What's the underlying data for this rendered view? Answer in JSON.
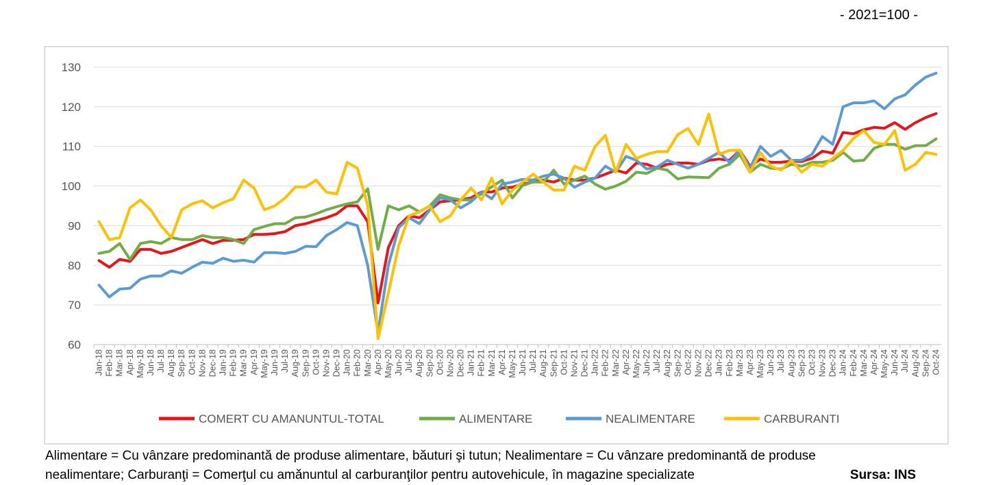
{
  "chart_data": {
    "type": "line",
    "subtitle": "- 2021=100 -",
    "footnote": [
      "Alimentare = Cu vânzare predominantă de produse alimentare, băuturi şi tutun; Nealimentare = Cu vânzare predominantă de produse",
      "nealimentare; Carburanţi = Comerţul cu amănuntul al carburanţilor pentru autovehicule, în magazine specializate"
    ],
    "source": "Sursa: INS",
    "categories": [
      "Jan-18",
      "Feb-18",
      "Mar-18",
      "Apr-18",
      "May-18",
      "Jun-18",
      "Jul-18",
      "Aug-18",
      "Sep-18",
      "Oct-18",
      "Nov-18",
      "Dec-18",
      "Jan-19",
      "Feb-19",
      "Mar-19",
      "Apr-19",
      "May-19",
      "Jun-19",
      "Jul-19",
      "Aug-19",
      "Sep-19",
      "Oct-19",
      "Nov-19",
      "Dec-19",
      "Jan-20",
      "Feb-20",
      "Mar-20",
      "Apr-20",
      "May-20",
      "Jun-20",
      "Jul-20",
      "Aug-20",
      "Sep-20",
      "Oct-20",
      "Nov-20",
      "Dec-20",
      "Jan-21",
      "Feb-21",
      "Mar-21",
      "Apr-21",
      "May-21",
      "Jun-21",
      "Jul-21",
      "Aug-21",
      "Sep-21",
      "Oct-21",
      "Nov-21",
      "Dec-21",
      "Jan-22",
      "Feb-22",
      "Mar-22",
      "Apr-22",
      "May-22",
      "Jun-22",
      "Jul-22",
      "Aug-22",
      "Sep-22",
      "Oct-22",
      "Nov-22",
      "Dec-22",
      "Jan-23",
      "Feb-23",
      "Mar-23",
      "Apr-23",
      "May-23",
      "Jun-23",
      "Jul-23",
      "Aug-23",
      "Sep-23",
      "Oct-23",
      "Nov-23",
      "Dec-23",
      "Jan-24",
      "Feb-24",
      "Mar-24",
      "Apr-24",
      "May-24",
      "Jun-24",
      "Jul-24",
      "Aug-24",
      "Sep-24",
      "Oct-24"
    ],
    "series": [
      {
        "name": "COMERT CU AMANUNTUL-TOTAL",
        "color": "#e8141b",
        "values": [
          81.2,
          79.5,
          81.5,
          81,
          84,
          84,
          83,
          83.5,
          84.5,
          85.5,
          86.5,
          85.5,
          86.3,
          86.3,
          86.5,
          87.8,
          87.8,
          88,
          88.5,
          90,
          90.5,
          91.3,
          92,
          93,
          95,
          95,
          91,
          70.5,
          84.5,
          90,
          92.5,
          92,
          94,
          96,
          96.3,
          96.5,
          97,
          98.5,
          98.5,
          99.5,
          99.7,
          100.5,
          101,
          101.5,
          101,
          102,
          101.5,
          101.5,
          102,
          103,
          104,
          103.3,
          105.8,
          105.5,
          104.5,
          105.5,
          105.8,
          105.8,
          105.5,
          106.5,
          106.8,
          106.5,
          109,
          105,
          106.8,
          106,
          106,
          106.3,
          106.2,
          107,
          108.8,
          108.3,
          113.5,
          113.2,
          114.2,
          114.8,
          114.6,
          116,
          114.3,
          116,
          117.3,
          118.3
        ]
      },
      {
        "name": "ALIMENTARE",
        "color": "#70ad47",
        "values": [
          83,
          83.5,
          85.5,
          81.5,
          85.5,
          86,
          85.5,
          87,
          86.5,
          86.5,
          87.5,
          87,
          87,
          86.5,
          85.5,
          89,
          89.8,
          90.5,
          90.5,
          92,
          92.2,
          93,
          94,
          94.8,
          95.5,
          96,
          99.3,
          84,
          95,
          94,
          95,
          93.5,
          95,
          97.8,
          97,
          96.5,
          96.5,
          98,
          99.8,
          101.5,
          97,
          100.2,
          101,
          101,
          104,
          100.5,
          101.5,
          102.5,
          100.5,
          99.2,
          100,
          101.2,
          103.5,
          103.2,
          104.5,
          104,
          101.8,
          102.3,
          102.2,
          102.1,
          104.5,
          105.5,
          108,
          103.5,
          105.5,
          104.5,
          104.3,
          105.5,
          105,
          106,
          106,
          106.5,
          108.5,
          106.3,
          106.5,
          109.5,
          110.5,
          110.5,
          109.3,
          110.2,
          110.2,
          111.9
        ]
      },
      {
        "name": "NEALIMENTARE",
        "color": "#5b9bd5",
        "values": [
          75,
          72,
          74,
          74.2,
          76.5,
          77.3,
          77.3,
          78.6,
          78,
          79.5,
          80.8,
          80.5,
          81.8,
          81,
          81.3,
          80.8,
          83.2,
          83.2,
          83,
          83.5,
          84.8,
          84.7,
          87.5,
          89,
          90.8,
          90,
          80,
          63,
          80,
          89.5,
          92,
          90.5,
          94,
          97,
          96.5,
          94.5,
          96,
          98.5,
          96.8,
          100.5,
          101,
          101.7,
          101.5,
          102.5,
          103,
          102,
          99.7,
          101,
          102,
          105,
          103.5,
          107.5,
          106.5,
          104.3,
          104.8,
          106.5,
          105.5,
          104.5,
          105.5,
          107,
          108.5,
          106,
          109,
          104.5,
          110,
          107.5,
          109,
          106.5,
          106.5,
          108,
          112.5,
          110.5,
          120,
          121,
          121,
          121.5,
          119.5,
          122,
          123,
          125.5,
          127.5,
          128.5
        ]
      },
      {
        "name": "CARBURANTI",
        "color": "#ffc000",
        "values": [
          91,
          86.5,
          87,
          94.5,
          96.5,
          94,
          90,
          87,
          94,
          95.5,
          96.3,
          94.5,
          95.8,
          96.8,
          101.5,
          99.5,
          94,
          95,
          97,
          99.8,
          99.8,
          101.5,
          98.5,
          98,
          106,
          104.5,
          95,
          61.5,
          73,
          85,
          92.5,
          93.5,
          95,
          91,
          92.5,
          96.5,
          99.5,
          96.5,
          102,
          95.5,
          99,
          101,
          103,
          101,
          99,
          99,
          105,
          104,
          110,
          112.8,
          103.5,
          110.5,
          107,
          108,
          108.7,
          108.7,
          113,
          114.5,
          110.5,
          118.2,
          108,
          109,
          109,
          103.5,
          108.5,
          105,
          104,
          106.5,
          103.5,
          105.5,
          105,
          107,
          109,
          112,
          114,
          111,
          110.5,
          114,
          104,
          105.5,
          108.5,
          108
        ]
      }
    ],
    "ylim": [
      60,
      130
    ],
    "yticks": [
      60,
      70,
      80,
      90,
      100,
      110,
      120,
      130
    ],
    "grid": true,
    "legend": "bottom"
  }
}
